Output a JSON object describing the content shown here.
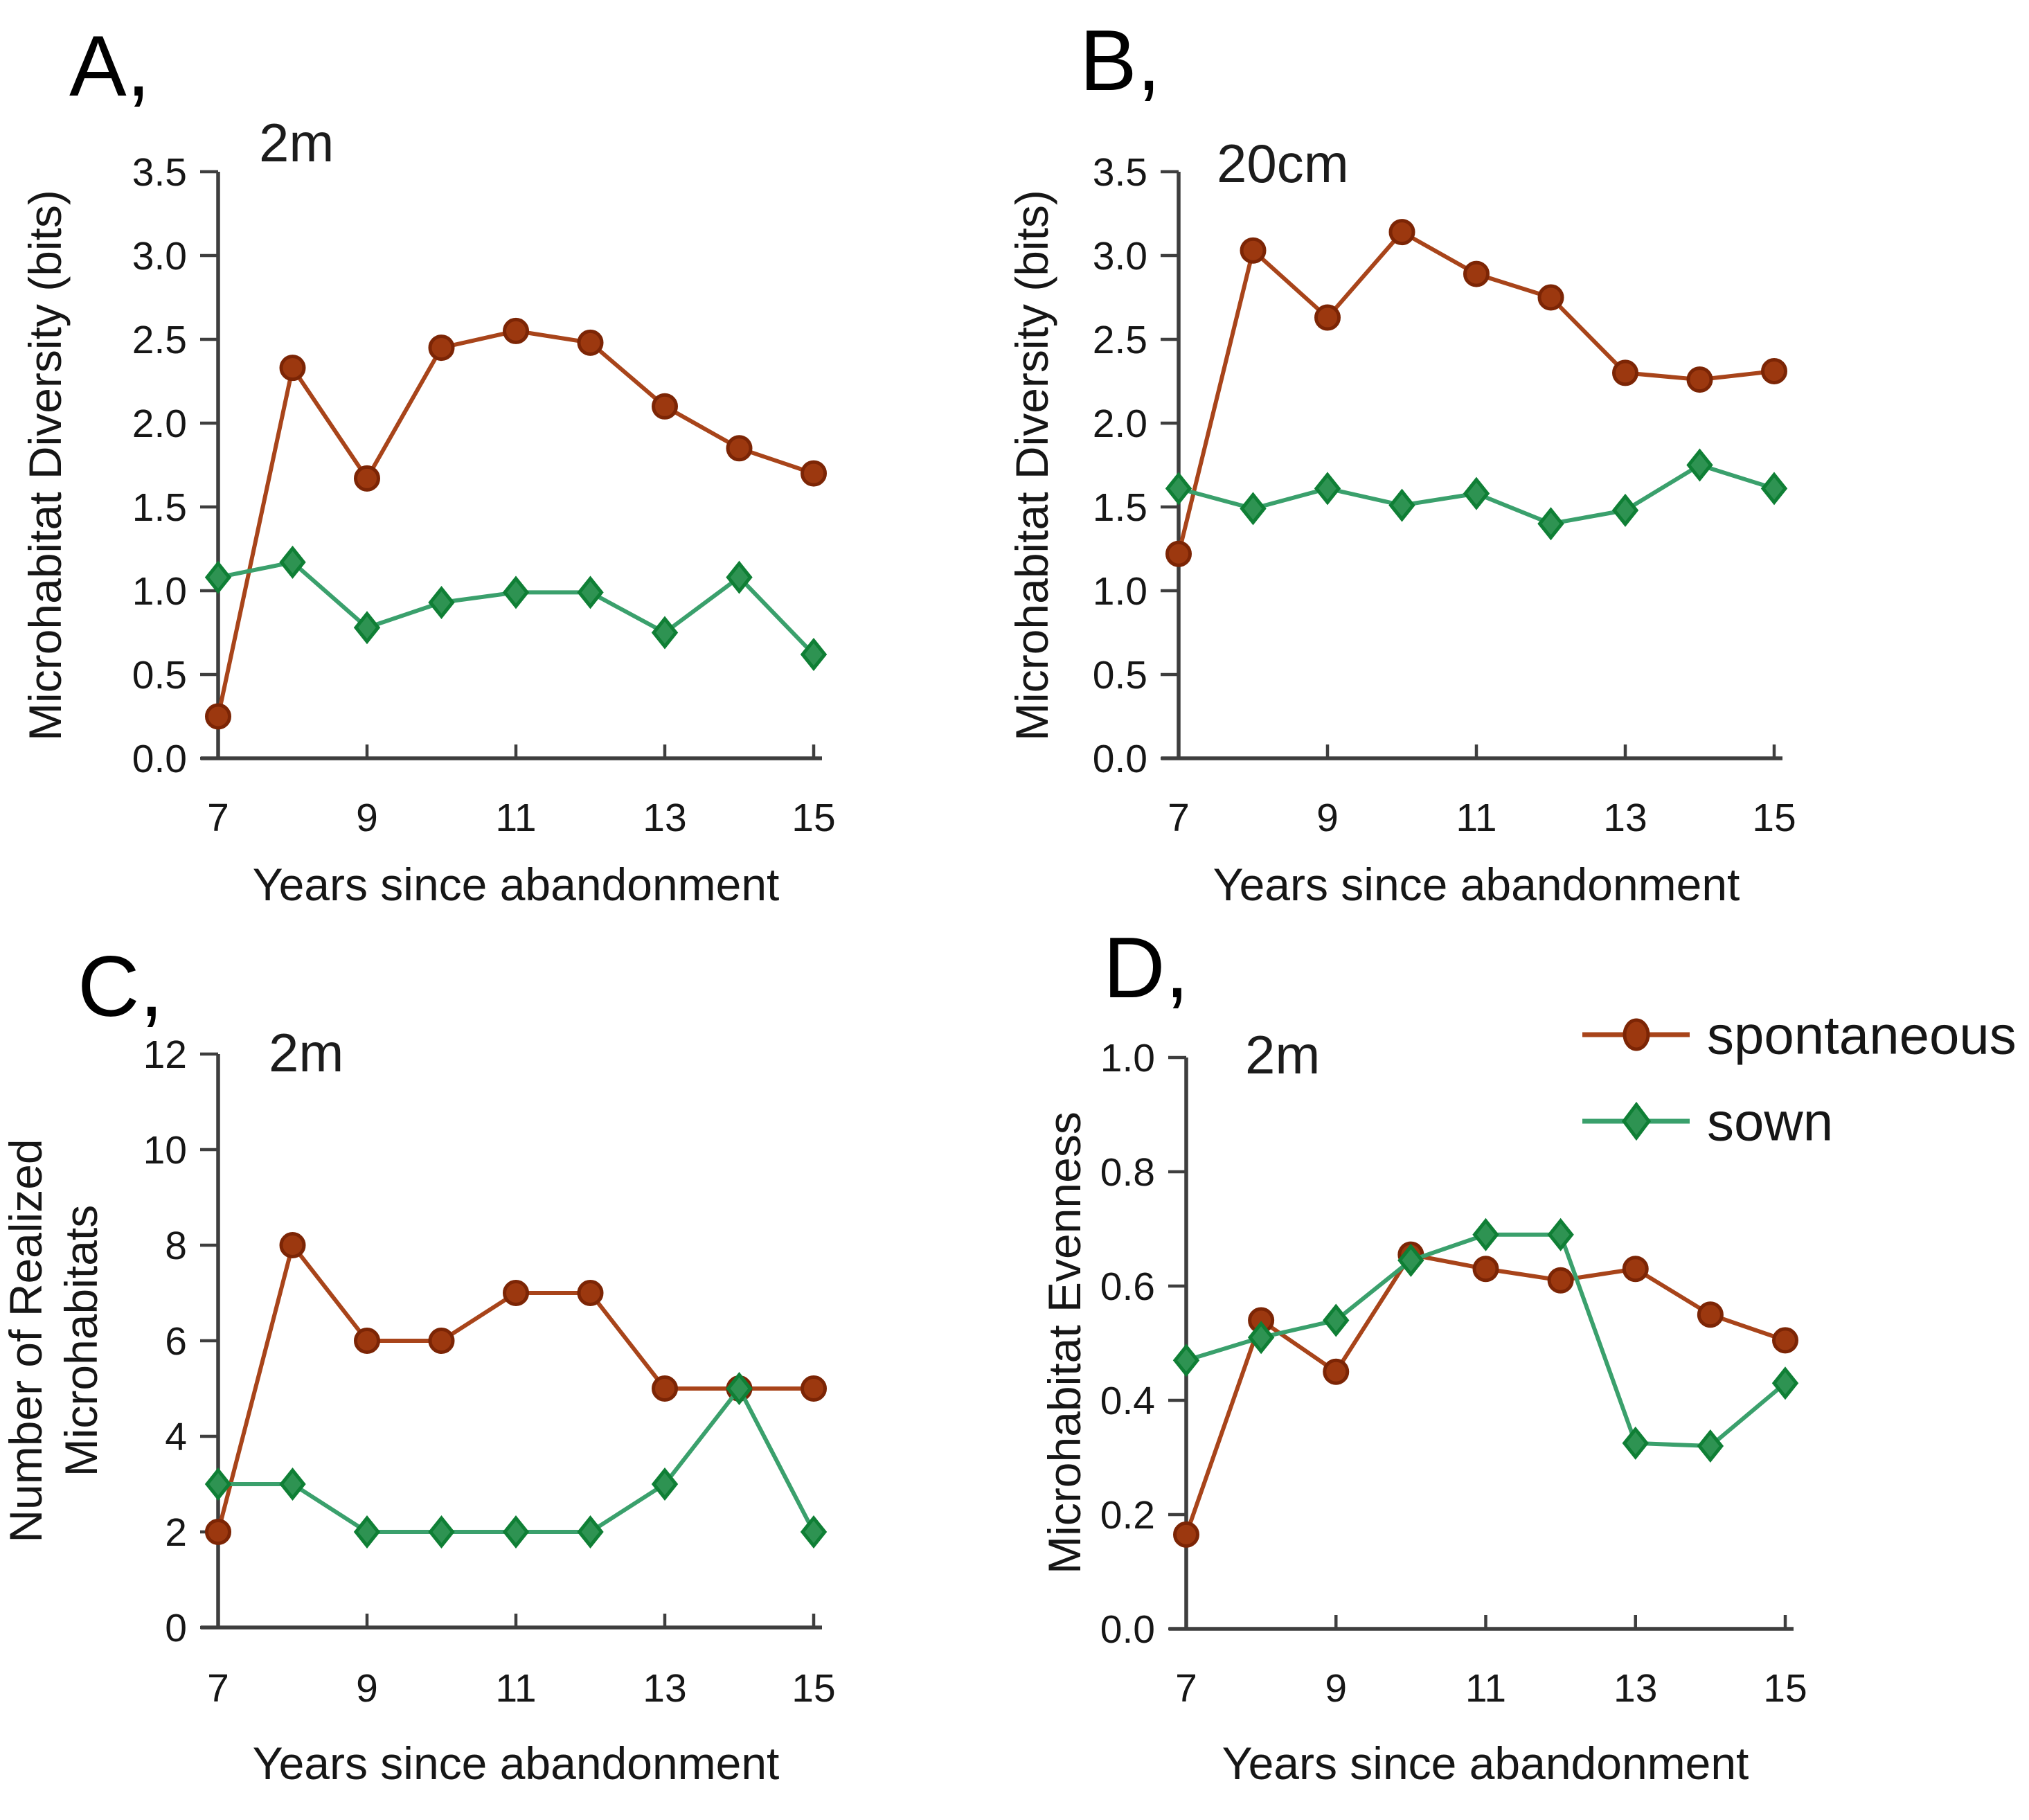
{
  "figure": {
    "xlabel": "Years since abandonment",
    "legend": {
      "position": "top-right-of-panel-D",
      "entries": [
        {
          "label": "spontaneous",
          "series": "spontaneous",
          "marker": "circle"
        },
        {
          "label": "sown",
          "series": "sown",
          "marker": "diamond"
        }
      ]
    }
  },
  "colors": {
    "spontaneous_line": "#a8441a",
    "spontaneous_fill": "#9c380f",
    "spontaneous_edge": "#7c2505",
    "sown_line": "#3aa06c",
    "sown_fill": "#2e9352",
    "sown_edge": "#0f7f35",
    "axis": "#3e3e3e",
    "text": "#161616"
  },
  "chart_data": [
    {
      "type": "line",
      "panel_label": "A,",
      "annotation": "2m",
      "ylabel": "Microhabitat Diversity (bits)",
      "ylabel_lines": [
        "Microhabitat Diversity (bits)"
      ],
      "xlabel": "Years since abandonment",
      "x": [
        7,
        8,
        9,
        10,
        11,
        12,
        13,
        14,
        15
      ],
      "xlim": [
        7,
        15
      ],
      "xticks": [
        7,
        9,
        11,
        13,
        15
      ],
      "ylim": [
        0,
        3.5
      ],
      "ytick_step": 0.5,
      "ytick_decimals": 1,
      "grid": false,
      "series": [
        {
          "name": "spontaneous",
          "marker": "circle",
          "values": [
            0.25,
            2.33,
            1.67,
            2.45,
            2.55,
            2.48,
            2.1,
            1.85,
            1.7
          ]
        },
        {
          "name": "sown",
          "marker": "diamond",
          "values": [
            1.08,
            1.17,
            0.78,
            0.93,
            0.99,
            0.99,
            0.75,
            1.08,
            0.62
          ]
        }
      ]
    },
    {
      "type": "line",
      "panel_label": "B,",
      "annotation": "20cm",
      "ylabel": "Microhabitat Diversity (bits)",
      "ylabel_lines": [
        "Microhabitat Diversity (bits)"
      ],
      "xlabel": "Years since abandonment",
      "x": [
        7,
        8,
        9,
        10,
        11,
        12,
        13,
        14,
        15
      ],
      "xlim": [
        7,
        15
      ],
      "xticks": [
        7,
        9,
        11,
        13,
        15
      ],
      "ylim": [
        0,
        3.5
      ],
      "ytick_step": 0.5,
      "ytick_decimals": 1,
      "grid": false,
      "series": [
        {
          "name": "spontaneous",
          "marker": "circle",
          "values": [
            1.22,
            3.03,
            2.63,
            3.14,
            2.89,
            2.75,
            2.3,
            2.26,
            2.31
          ]
        },
        {
          "name": "sown",
          "marker": "diamond",
          "values": [
            1.61,
            1.49,
            1.61,
            1.51,
            1.58,
            1.4,
            1.48,
            1.75,
            1.61
          ]
        }
      ]
    },
    {
      "type": "line",
      "panel_label": "C,",
      "annotation": "2m",
      "ylabel": "Number of Realized Microhabitats",
      "ylabel_lines": [
        "Number of Realized",
        "Microhabitats"
      ],
      "xlabel": "Years since abandonment",
      "x": [
        7,
        8,
        9,
        10,
        11,
        12,
        13,
        14,
        15
      ],
      "xlim": [
        7,
        15
      ],
      "xticks": [
        7,
        9,
        11,
        13,
        15
      ],
      "ylim": [
        0,
        12
      ],
      "ytick_step": 2,
      "ytick_decimals": 0,
      "grid": false,
      "series": [
        {
          "name": "spontaneous",
          "marker": "circle",
          "values": [
            2,
            8,
            6,
            6,
            7,
            7,
            5,
            5,
            5
          ]
        },
        {
          "name": "sown",
          "marker": "diamond",
          "values": [
            3,
            3,
            2,
            2,
            2,
            2,
            3,
            5,
            2
          ]
        }
      ]
    },
    {
      "type": "line",
      "panel_label": "D,",
      "annotation": "2m",
      "ylabel": "Microhabitat Evenness",
      "ylabel_lines": [
        "Microhabitat Evenness"
      ],
      "xlabel": "Years since abandonment",
      "x": [
        7,
        8,
        9,
        10,
        11,
        12,
        13,
        14,
        15
      ],
      "xlim": [
        7,
        15
      ],
      "xticks": [
        7,
        9,
        11,
        13,
        15
      ],
      "ylim": [
        0,
        1.0
      ],
      "ytick_step": 0.2,
      "ytick_decimals": 1,
      "grid": false,
      "show_legend": true,
      "series": [
        {
          "name": "spontaneous",
          "marker": "circle",
          "values": [
            0.165,
            0.54,
            0.45,
            0.655,
            0.63,
            0.61,
            0.63,
            0.55,
            0.505
          ]
        },
        {
          "name": "sown",
          "marker": "diamond",
          "values": [
            0.47,
            0.51,
            0.54,
            0.645,
            0.69,
            0.69,
            0.325,
            0.32,
            0.43
          ]
        }
      ]
    }
  ]
}
